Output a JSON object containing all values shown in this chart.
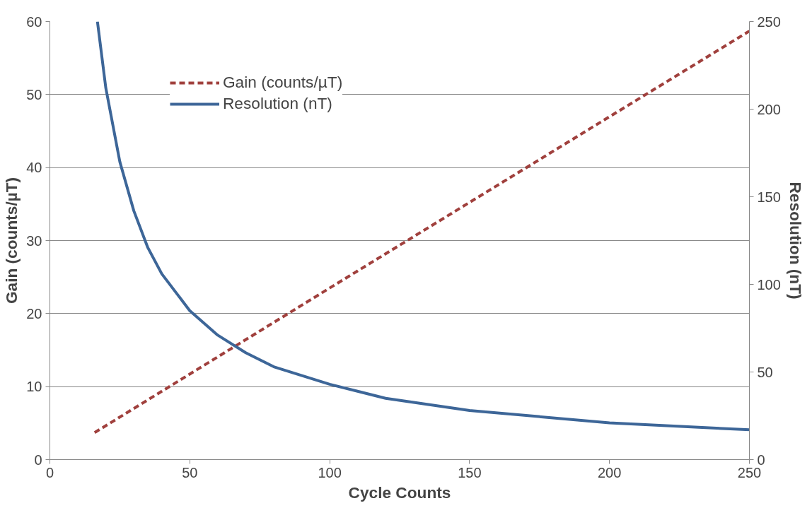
{
  "chart_data": {
    "type": "line",
    "xlabel": "Cycle Counts",
    "ylabel": "Gain (counts/µT)",
    "y2label": "Resolution (nT)",
    "xlim": [
      0,
      250
    ],
    "xticks": [
      0,
      50,
      100,
      150,
      200,
      250
    ],
    "ylim": [
      0,
      60
    ],
    "yticks": [
      0,
      10,
      20,
      30,
      40,
      50,
      60
    ],
    "y2lim": [
      0,
      250
    ],
    "y2ticks": [
      0,
      50,
      100,
      150,
      200,
      250
    ],
    "grid": "y",
    "legend": "top",
    "marker": "none",
    "series": [
      {
        "name": "Gain (counts/µT)",
        "color": "#a0403d",
        "line_style": "dashed",
        "x": [
          16,
          100,
          250
        ],
        "values": [
          3.7,
          23.5,
          58.7
        ]
      },
      {
        "name": "Resolution (nT)",
        "color": "#3d6698",
        "line_style": "solid",
        "axis": "y2",
        "x": [
          17,
          20,
          25,
          30,
          35,
          40,
          50,
          60,
          70,
          80,
          100,
          120,
          150,
          200,
          250
        ],
        "values": [
          250,
          212,
          170,
          142,
          121,
          106,
          85,
          71,
          61,
          53,
          43,
          35,
          28,
          21,
          17
        ]
      }
    ]
  }
}
